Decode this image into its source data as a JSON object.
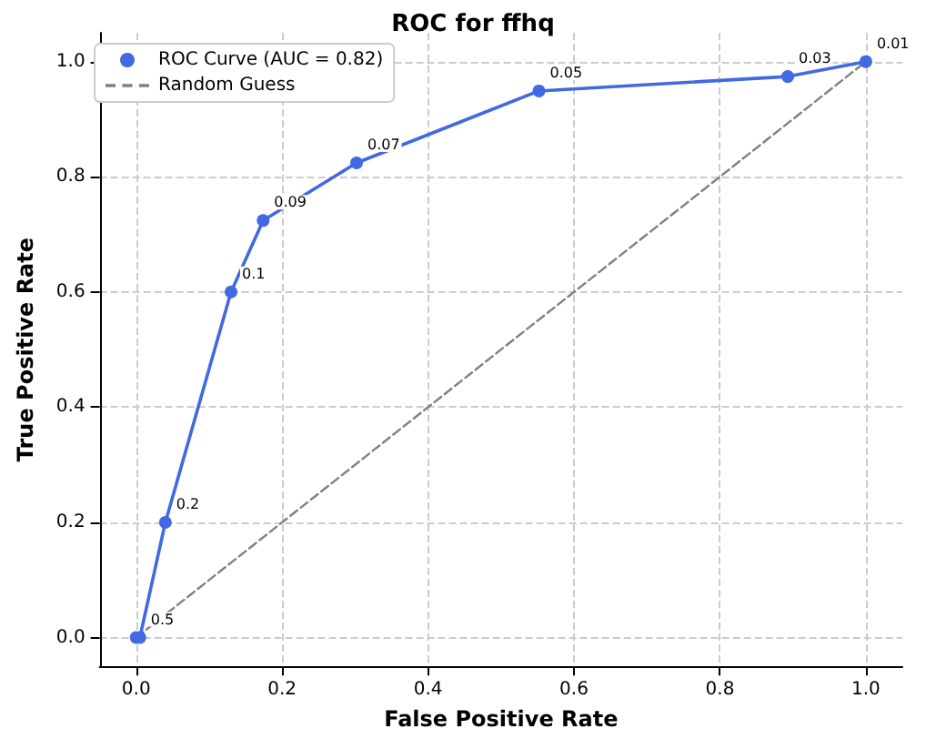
{
  "chart_data": {
    "type": "line",
    "title": "ROC for ffhq",
    "xlabel": "False Positive Rate",
    "ylabel": "True Positive Rate",
    "xlim": [
      -0.05,
      1.05
    ],
    "ylim": [
      -0.05,
      1.05
    ],
    "xticks": [
      {
        "value": 0,
        "label": "0.0"
      },
      0.2,
      0.4,
      0.6,
      0.8,
      {
        "value": 1,
        "label": "1.0"
      }
    ],
    "yticks": [
      {
        "value": 0,
        "label": "0.0"
      },
      0.2,
      0.4,
      0.6,
      0.8,
      {
        "value": 1,
        "label": "1.0"
      }
    ],
    "grid": true,
    "legend": "top left",
    "annotations": [
      {
        "text": "0.5",
        "x": 0.005,
        "y": 0
      },
      {
        "text": "0.2",
        "x": 0.04,
        "y": 0.2
      },
      {
        "text": "0.1",
        "x": 0.13,
        "y": 0.6
      },
      {
        "text": "0.09",
        "x": 0.174,
        "y": 0.724
      },
      {
        "text": "0.07",
        "x": 0.302,
        "y": 0.824
      },
      {
        "text": "0.05",
        "x": 0.552,
        "y": 0.949
      },
      {
        "text": "0.03",
        "x": 0.893,
        "y": 0.974
      },
      {
        "text": "0.01",
        "x": 1,
        "y": 1
      }
    ],
    "series": [
      {
        "name": "ROC Curve (AUC = 0.82)",
        "color": "#4169e1",
        "marker": "circle",
        "line_style": "solid",
        "x": [
          0,
          0.005,
          0.04,
          0.13,
          0.174,
          0.302,
          0.552,
          0.893,
          1
        ],
        "values": [
          0,
          0,
          0.2,
          0.6,
          0.724,
          0.824,
          0.949,
          0.974,
          1
        ]
      },
      {
        "name": "Random Guess",
        "color": "#808080",
        "marker": "none",
        "line_style": "dashed",
        "x": [
          0,
          1
        ],
        "values": [
          0,
          1
        ]
      }
    ]
  }
}
